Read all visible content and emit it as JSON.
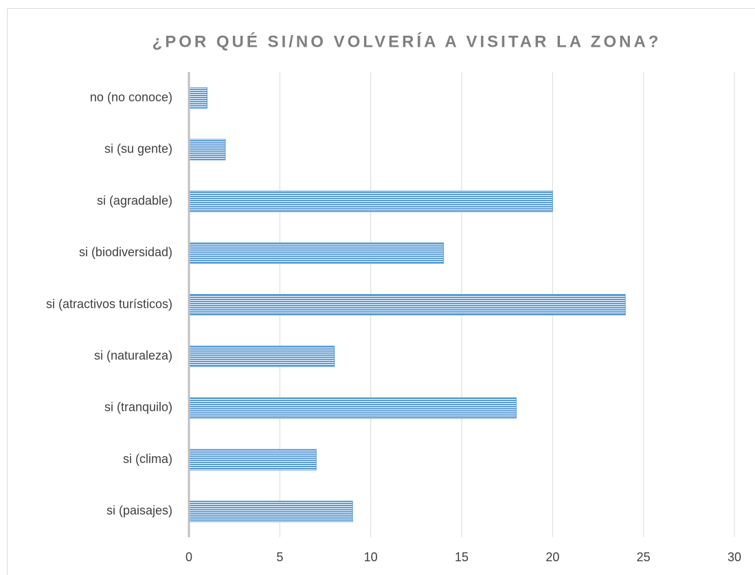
{
  "chart_data": {
    "type": "hbar",
    "title": "¿POR QUÉ SI/NO VOLVERÍA A VISITAR LA ZONA?",
    "categories": [
      "no (no conoce)",
      "si (su gente)",
      "si (agradable)",
      "si (biodiversidad)",
      "si (atractivos turísticos)",
      "si (naturaleza)",
      "si (tranquilo)",
      "si (clima)",
      "si (paisajes)"
    ],
    "values": [
      1,
      2,
      20,
      14,
      24,
      8,
      18,
      7,
      9
    ],
    "color": "#5b9bd5",
    "xlim": [
      0,
      30
    ],
    "xticks": [
      0,
      5,
      10,
      15,
      20,
      25,
      30
    ],
    "grid": true
  }
}
